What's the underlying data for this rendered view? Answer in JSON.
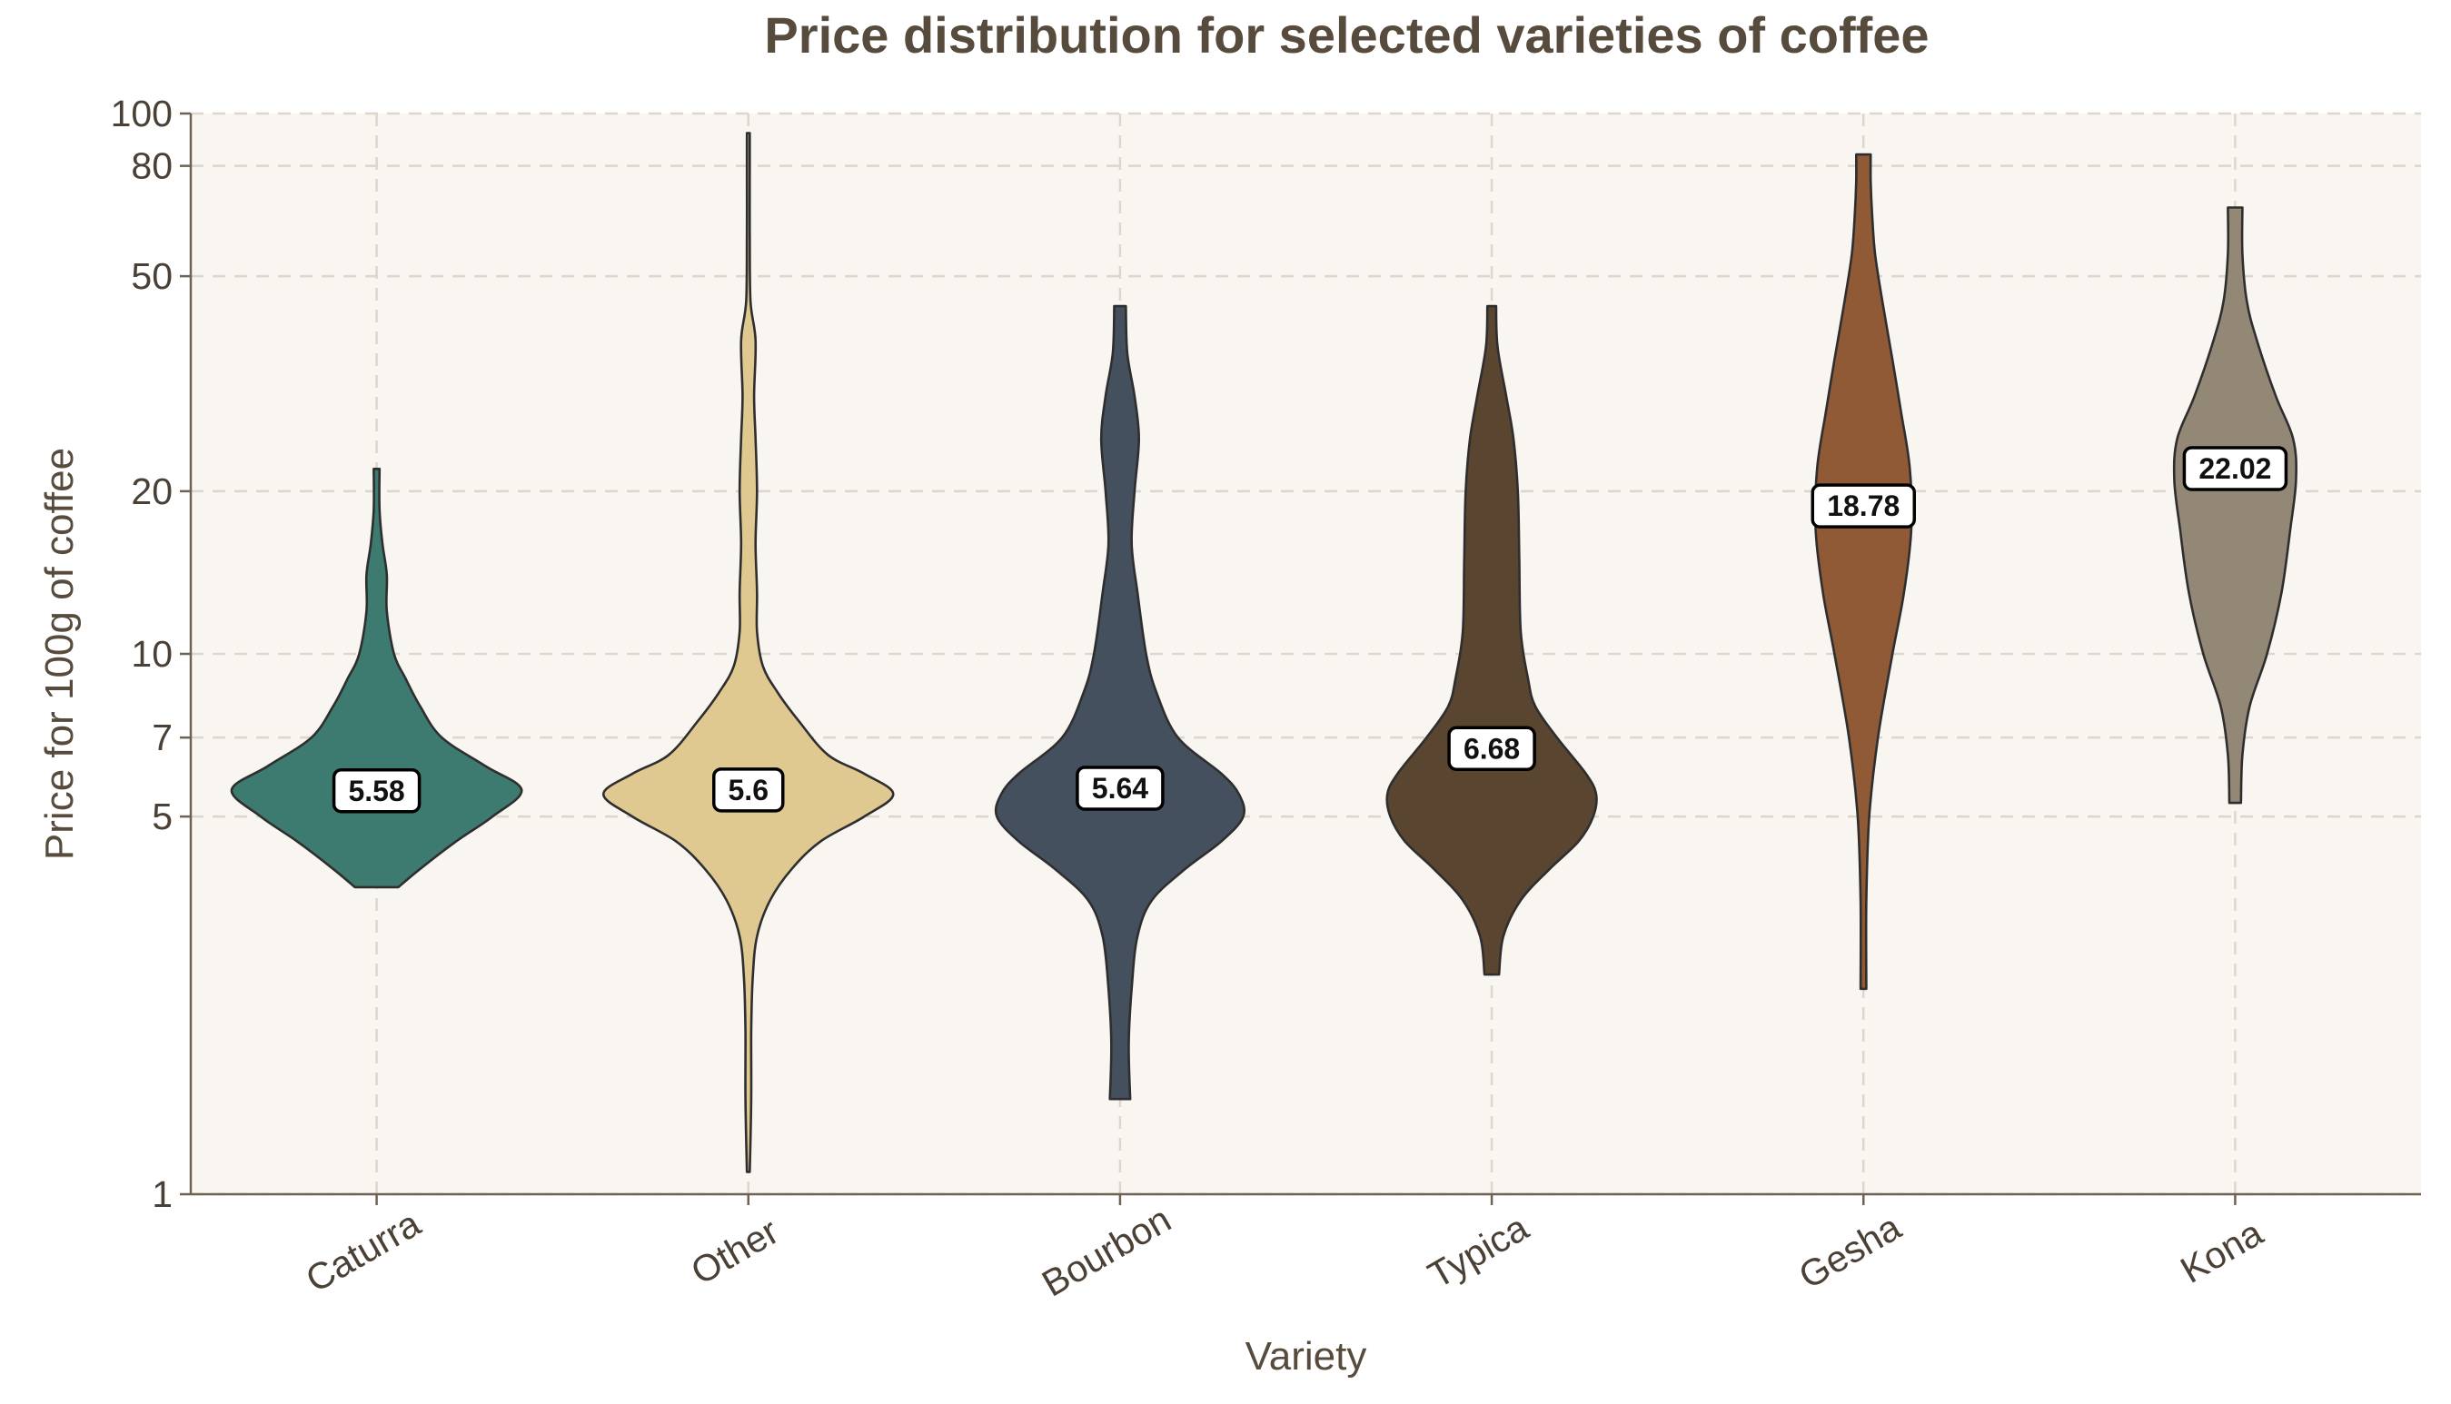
{
  "chart_data": {
    "type": "violin",
    "title": "Price distribution for selected varieties of coffee",
    "xlabel": "Variety",
    "ylabel": "Price for 100g of coffee",
    "yscale": "log",
    "ylim": [
      1,
      100
    ],
    "yticks": [
      1,
      5,
      7,
      10,
      20,
      50,
      80,
      100
    ],
    "grid": true,
    "categories": [
      "Caturra",
      "Other",
      "Bourbon",
      "Typica",
      "Gesha",
      "Kona"
    ],
    "colors": [
      "#3d7a6f",
      "#e0c990",
      "#45505e",
      "#5a4630",
      "#8f5a35",
      "#928875"
    ],
    "series": [
      {
        "category": "Caturra",
        "median": 5.58,
        "min": 3.7,
        "max": 22,
        "density": [
          [
            3.7,
            0.15
          ],
          [
            4.0,
            0.3
          ],
          [
            4.5,
            0.55
          ],
          [
            5.0,
            0.8
          ],
          [
            5.6,
            1.0
          ],
          [
            6.2,
            0.75
          ],
          [
            7.0,
            0.45
          ],
          [
            8.0,
            0.3
          ],
          [
            9.0,
            0.2
          ],
          [
            10.0,
            0.12
          ],
          [
            12.0,
            0.07
          ],
          [
            14.0,
            0.07
          ],
          [
            16.0,
            0.04
          ],
          [
            18.5,
            0.02
          ],
          [
            22.0,
            0.02
          ]
        ]
      },
      {
        "category": "Other",
        "median": 5.6,
        "min": 1.1,
        "max": 92,
        "density": [
          [
            1.1,
            0.01
          ],
          [
            1.5,
            0.02
          ],
          [
            2.0,
            0.02
          ],
          [
            2.5,
            0.03
          ],
          [
            3.0,
            0.06
          ],
          [
            3.5,
            0.15
          ],
          [
            4.0,
            0.3
          ],
          [
            4.5,
            0.5
          ],
          [
            5.0,
            0.8
          ],
          [
            5.5,
            1.0
          ],
          [
            6.0,
            0.8
          ],
          [
            6.5,
            0.55
          ],
          [
            7.5,
            0.35
          ],
          [
            8.5,
            0.2
          ],
          [
            9.5,
            0.1
          ],
          [
            11.0,
            0.06
          ],
          [
            13.0,
            0.06
          ],
          [
            16.0,
            0.05
          ],
          [
            20.0,
            0.06
          ],
          [
            25.0,
            0.05
          ],
          [
            30.0,
            0.04
          ],
          [
            38.0,
            0.05
          ],
          [
            45.0,
            0.015
          ],
          [
            60.0,
            0.01
          ],
          [
            80.0,
            0.01
          ],
          [
            92.0,
            0.01
          ]
        ]
      },
      {
        "category": "Bourbon",
        "median": 5.64,
        "min": 1.5,
        "max": 44,
        "density": [
          [
            1.5,
            0.07
          ],
          [
            1.9,
            0.06
          ],
          [
            2.4,
            0.08
          ],
          [
            3.0,
            0.12
          ],
          [
            3.5,
            0.22
          ],
          [
            4.0,
            0.45
          ],
          [
            4.5,
            0.7
          ],
          [
            5.0,
            0.85
          ],
          [
            5.5,
            0.82
          ],
          [
            6.0,
            0.7
          ],
          [
            7.0,
            0.4
          ],
          [
            8.5,
            0.25
          ],
          [
            10.0,
            0.18
          ],
          [
            13.0,
            0.12
          ],
          [
            16.0,
            0.08
          ],
          [
            20.0,
            0.1
          ],
          [
            25.0,
            0.13
          ],
          [
            30.0,
            0.1
          ],
          [
            36.0,
            0.05
          ],
          [
            44.0,
            0.04
          ]
        ]
      },
      {
        "category": "Typica",
        "median": 6.68,
        "min": 2.55,
        "max": 44,
        "density": [
          [
            2.55,
            0.05
          ],
          [
            3.0,
            0.08
          ],
          [
            3.5,
            0.2
          ],
          [
            4.0,
            0.4
          ],
          [
            4.5,
            0.6
          ],
          [
            5.0,
            0.7
          ],
          [
            5.5,
            0.72
          ],
          [
            6.0,
            0.65
          ],
          [
            7.0,
            0.45
          ],
          [
            8.0,
            0.3
          ],
          [
            9.0,
            0.25
          ],
          [
            11.0,
            0.2
          ],
          [
            15.0,
            0.19
          ],
          [
            20.0,
            0.18
          ],
          [
            25.0,
            0.15
          ],
          [
            30.0,
            0.1
          ],
          [
            37.0,
            0.04
          ],
          [
            44.0,
            0.03
          ]
        ]
      },
      {
        "category": "Gesha",
        "median": 18.78,
        "min": 2.4,
        "max": 84,
        "density": [
          [
            2.4,
            0.02
          ],
          [
            3.5,
            0.02
          ],
          [
            5.0,
            0.04
          ],
          [
            7.0,
            0.1
          ],
          [
            10.0,
            0.2
          ],
          [
            13.0,
            0.28
          ],
          [
            17.0,
            0.33
          ],
          [
            22.0,
            0.32
          ],
          [
            28.0,
            0.26
          ],
          [
            35.0,
            0.2
          ],
          [
            45.0,
            0.13
          ],
          [
            55.0,
            0.08
          ],
          [
            65.0,
            0.06
          ],
          [
            75.0,
            0.05
          ],
          [
            84.0,
            0.05
          ]
        ]
      },
      {
        "category": "Kona",
        "median": 22.02,
        "min": 5.3,
        "max": 67,
        "density": [
          [
            5.3,
            0.04
          ],
          [
            6.5,
            0.05
          ],
          [
            8.0,
            0.1
          ],
          [
            10.0,
            0.22
          ],
          [
            13.0,
            0.32
          ],
          [
            17.0,
            0.38
          ],
          [
            21.0,
            0.42
          ],
          [
            25.0,
            0.4
          ],
          [
            30.0,
            0.28
          ],
          [
            38.0,
            0.15
          ],
          [
            45.0,
            0.08
          ],
          [
            55.0,
            0.05
          ],
          [
            67.0,
            0.05
          ]
        ]
      }
    ]
  }
}
